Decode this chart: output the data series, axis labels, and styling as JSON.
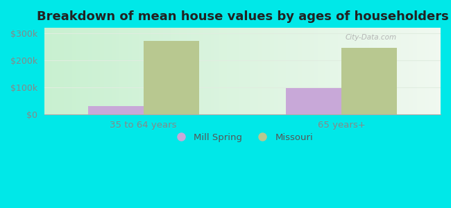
{
  "title": "Breakdown of mean house values by ages of householders",
  "categories": [
    "35 to 64 years",
    "65 years+"
  ],
  "mill_spring_values": [
    30000,
    97000
  ],
  "missouri_values": [
    272000,
    247000
  ],
  "mill_spring_color": "#c8a8d8",
  "missouri_color": "#b8c890",
  "background_color": "#00e8e8",
  "plot_bg_gradient_left": "#c8f0d0",
  "plot_bg_gradient_right": "#f0f8f0",
  "ylim": [
    0,
    320000
  ],
  "yticks": [
    0,
    100000,
    200000,
    300000
  ],
  "ytick_labels": [
    "$0",
    "$100k",
    "$200k",
    "$300k"
  ],
  "bar_width": 0.28,
  "legend_labels": [
    "Mill Spring",
    "Missouri"
  ],
  "title_fontsize": 13,
  "label_fontsize": 9.5,
  "tick_fontsize": 9,
  "grid_color": "#e0ede0",
  "tick_color": "#888888"
}
